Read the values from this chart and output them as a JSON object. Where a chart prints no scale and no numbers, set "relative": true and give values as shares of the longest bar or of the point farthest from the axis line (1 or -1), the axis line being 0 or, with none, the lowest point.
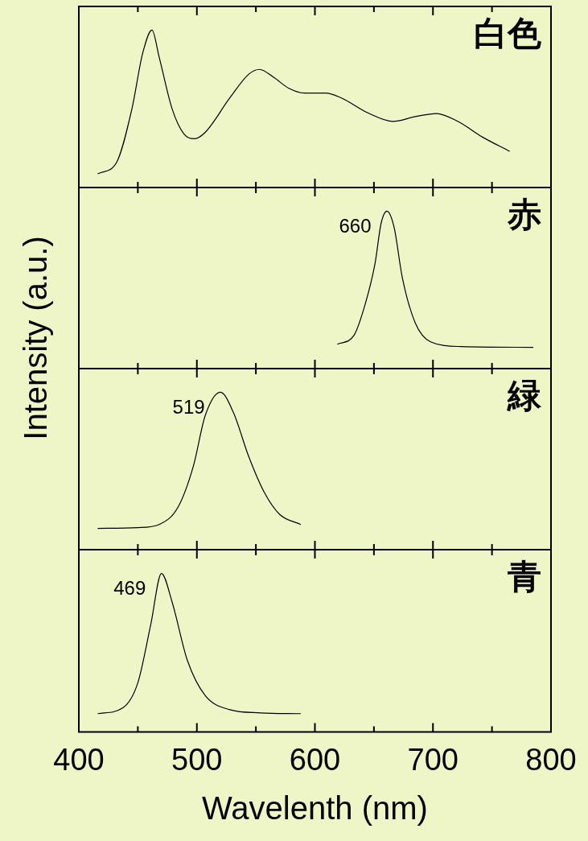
{
  "chart_data": [
    {
      "type": "line",
      "title": "白色",
      "ylabel": "Intensity (a.u.)",
      "relative": true,
      "color": "#000000",
      "tick_labels": false,
      "xlim": [
        400,
        800
      ],
      "xticks": [
        400,
        {
          "value": 450,
          "label": null
        },
        500,
        {
          "value": 550,
          "label": null
        },
        600,
        {
          "value": 650,
          "label": null
        },
        700,
        {
          "value": 750,
          "label": null
        },
        800
      ],
      "x": [
        416,
        432,
        445,
        454,
        462,
        468,
        479,
        489,
        498,
        507,
        528,
        544,
        553,
        565,
        578,
        591,
        609,
        622,
        646,
        666,
        685,
        703,
        721,
        742,
        765
      ],
      "values": [
        0.087,
        0.16,
        0.5,
        0.85,
        1.0,
        0.83,
        0.5,
        0.34,
        0.31,
        0.35,
        0.57,
        0.72,
        0.75,
        0.7,
        0.63,
        0.6,
        0.6,
        0.57,
        0.47,
        0.42,
        0.45,
        0.47,
        0.42,
        0.32,
        0.23
      ]
    },
    {
      "type": "line",
      "title": "赤",
      "relative": true,
      "color": "#000000",
      "tick_labels": false,
      "xlim": [
        400,
        800
      ],
      "xticks": [
        400,
        {
          "value": 450,
          "label": null
        },
        500,
        {
          "value": 550,
          "label": null
        },
        600,
        {
          "value": 650,
          "label": null
        },
        700,
        {
          "value": 750,
          "label": null
        },
        800
      ],
      "annotations": [
        {
          "text": "660",
          "x": 660,
          "y": 1.0
        }
      ],
      "x": [
        619,
        633,
        643,
        651,
        656,
        661,
        667,
        674,
        685,
        698,
        724,
        785
      ],
      "values": [
        0.155,
        0.21,
        0.42,
        0.67,
        0.92,
        1.0,
        0.9,
        0.58,
        0.29,
        0.17,
        0.14,
        0.135
      ]
    },
    {
      "type": "line",
      "title": "緑",
      "relative": true,
      "color": "#000000",
      "tick_labels": false,
      "xlim": [
        400,
        800
      ],
      "xticks": [
        400,
        {
          "value": 450,
          "label": null
        },
        500,
        {
          "value": 550,
          "label": null
        },
        600,
        {
          "value": 650,
          "label": null
        },
        700,
        {
          "value": 750,
          "label": null
        },
        800
      ],
      "annotations": [
        {
          "text": "519",
          "x": 519,
          "y": 1.0
        }
      ],
      "x": [
        416,
        450,
        468,
        484,
        497,
        507,
        520,
        531,
        544,
        557,
        570,
        588
      ],
      "values": [
        0.135,
        0.14,
        0.16,
        0.27,
        0.53,
        0.85,
        1.0,
        0.87,
        0.59,
        0.365,
        0.225,
        0.16
      ]
    },
    {
      "type": "line",
      "title": "青",
      "xlabel": "Wavelenth (nm)",
      "relative": true,
      "color": "#000000",
      "tick_labels": "x",
      "xlim": [
        400,
        800
      ],
      "xticks": [
        400,
        {
          "value": 450,
          "label": null
        },
        500,
        {
          "value": 550,
          "label": null
        },
        600,
        {
          "value": 650,
          "label": null
        },
        700,
        {
          "value": 750,
          "label": null
        },
        800
      ],
      "annotations": [
        {
          "text": "469",
          "x": 469,
          "y": 1.0
        }
      ],
      "x": [
        416,
        437,
        450,
        461,
        470,
        479,
        492,
        507,
        528,
        554,
        588
      ],
      "values": [
        0.115,
        0.15,
        0.31,
        0.68,
        1.0,
        0.82,
        0.45,
        0.23,
        0.14,
        0.12,
        0.115
      ]
    }
  ]
}
